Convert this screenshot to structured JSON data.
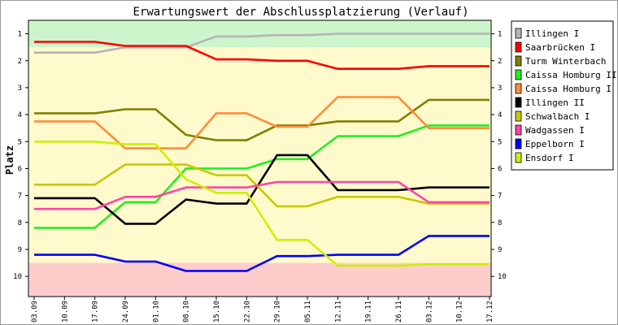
{
  "chart_data": {
    "type": "line",
    "title": "Erwartungswert der Abschlussplatzierung (Verlauf)",
    "xlabel": "",
    "ylabel": "Platz",
    "ylim": [
      10.75,
      0.5
    ],
    "y_ticks": [
      1,
      2,
      3,
      4,
      5,
      6,
      7,
      8,
      9,
      10
    ],
    "grid": false,
    "legend_position": "right",
    "zones": [
      {
        "name": "promotion",
        "from": 0.5,
        "to": 1.5,
        "color": "#ccf5cc"
      },
      {
        "name": "middle",
        "from": 1.5,
        "to": 9.5,
        "color": "#fffacc"
      },
      {
        "name": "relegation",
        "from": 9.5,
        "to": 10.75,
        "color": "#ffcccc"
      }
    ],
    "categories": [
      "03.09",
      "10.09",
      "17.09",
      "24.09",
      "01.10",
      "08.10",
      "15.10",
      "22.10",
      "29.10",
      "05.11",
      "12.11",
      "19.11",
      "26.11",
      "03.12",
      "10.12",
      "17.12"
    ],
    "series": [
      {
        "name": "Illingen I",
        "color": "#b4b4b4",
        "values": [
          1.7,
          1.7,
          1.7,
          1.5,
          1.5,
          1.5,
          1.1,
          1.1,
          1.05,
          1.05,
          1.0,
          1.0,
          1.0,
          1.0,
          1.0,
          1.0
        ]
      },
      {
        "name": "Saarbrücken I",
        "color": "#ff0000",
        "values": [
          1.3,
          1.3,
          1.3,
          1.45,
          1.45,
          1.45,
          1.95,
          1.95,
          2.0,
          2.0,
          2.3,
          2.3,
          2.3,
          2.2,
          2.2,
          2.2
        ]
      },
      {
        "name": "Turm Winterbach",
        "color": "#808000",
        "values": [
          3.95,
          3.95,
          3.95,
          3.8,
          3.8,
          4.75,
          4.95,
          4.95,
          4.4,
          4.4,
          4.25,
          4.25,
          4.25,
          3.45,
          3.45,
          3.45
        ]
      },
      {
        "name": "Caissa Homburg II",
        "color": "#22ee22",
        "values": [
          8.2,
          8.2,
          8.2,
          7.25,
          7.25,
          6.0,
          6.0,
          6.0,
          5.65,
          5.65,
          4.8,
          4.8,
          4.8,
          4.4,
          4.4,
          4.4
        ]
      },
      {
        "name": "Caissa Homburg I",
        "color": "#ff8c3c",
        "values": [
          4.25,
          4.25,
          4.25,
          5.25,
          5.25,
          5.25,
          3.95,
          3.95,
          4.45,
          4.45,
          3.35,
          3.35,
          3.35,
          4.5,
          4.5,
          4.5
        ]
      },
      {
        "name": "Illingen II",
        "color": "#000000",
        "values": [
          7.1,
          7.1,
          7.1,
          8.05,
          8.05,
          7.15,
          7.3,
          7.3,
          5.5,
          5.5,
          6.8,
          6.8,
          6.8,
          6.7,
          6.7,
          6.7
        ]
      },
      {
        "name": "Schwalbach I",
        "color": "#c8c800",
        "values": [
          6.6,
          6.6,
          6.6,
          5.85,
          5.85,
          5.85,
          6.25,
          6.25,
          7.4,
          7.4,
          7.05,
          7.05,
          7.05,
          7.3,
          7.3,
          7.3
        ]
      },
      {
        "name": "Wadgassen I",
        "color": "#ff44aa",
        "values": [
          7.5,
          7.5,
          7.5,
          7.05,
          7.05,
          6.7,
          6.7,
          6.7,
          6.5,
          6.5,
          6.5,
          6.5,
          6.5,
          7.25,
          7.25,
          7.25
        ]
      },
      {
        "name": "Eppelborn I",
        "color": "#0000ff",
        "values": [
          9.2,
          9.2,
          9.2,
          9.45,
          9.45,
          9.8,
          9.8,
          9.8,
          9.25,
          9.25,
          9.2,
          9.2,
          9.2,
          8.5,
          8.5,
          8.5
        ]
      },
      {
        "name": "Ensdorf I",
        "color": "#ccf000",
        "values": [
          5.0,
          5.0,
          5.0,
          5.1,
          5.1,
          6.4,
          6.9,
          6.9,
          8.65,
          8.65,
          9.6,
          9.6,
          9.6,
          9.55,
          9.55,
          9.55
        ]
      }
    ]
  }
}
